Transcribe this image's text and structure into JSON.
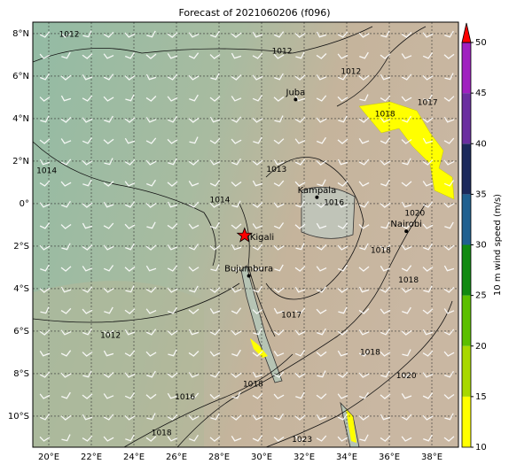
{
  "title": "Forecast of 2021060206 (f096)",
  "map": {
    "lonlim": [
      19.25,
      39.25
    ],
    "latlim": [
      -11.46,
      8.54
    ],
    "xticks": [
      {
        "value": 20,
        "label": "20°E"
      },
      {
        "value": 22,
        "label": "22°E"
      },
      {
        "value": 24,
        "label": "24°E"
      },
      {
        "value": 26,
        "label": "26°E"
      },
      {
        "value": 28,
        "label": "28°E"
      },
      {
        "value": 30,
        "label": "30°E"
      },
      {
        "value": 32,
        "label": "32°E"
      },
      {
        "value": 34,
        "label": "34°E"
      },
      {
        "value": 36,
        "label": "36°E"
      },
      {
        "value": 38,
        "label": "38°E"
      }
    ],
    "yticks": [
      {
        "value": 8,
        "label": "8°N"
      },
      {
        "value": 6,
        "label": "6°N"
      },
      {
        "value": 4,
        "label": "4°N"
      },
      {
        "value": 2,
        "label": "2°N"
      },
      {
        "value": 0,
        "label": "0°"
      },
      {
        "value": -2,
        "label": "2°S"
      },
      {
        "value": -4,
        "label": "4°S"
      },
      {
        "value": -6,
        "label": "6°S"
      },
      {
        "value": -8,
        "label": "8°S"
      },
      {
        "value": -10,
        "label": "10°S"
      }
    ],
    "grid": true,
    "cities": [
      {
        "name": "Juba",
        "lon": 31.6,
        "lat": 4.9
      },
      {
        "name": "Kampala",
        "lon": 32.6,
        "lat": 0.3
      },
      {
        "name": "Kigali",
        "lon": 29.2,
        "lat": -1.5
      },
      {
        "name": "Bujumbura",
        "lon": 29.4,
        "lat": -3.4
      },
      {
        "name": "Nairobi",
        "lon": 36.8,
        "lat": -1.3
      }
    ],
    "contour_labels": [
      {
        "label": "1012",
        "lon": 20.96,
        "lat": 7.96
      },
      {
        "label": "1012",
        "lon": 30.96,
        "lat": 7.17
      },
      {
        "label": "1012",
        "lon": 34.2,
        "lat": 6.2
      },
      {
        "label": "1014",
        "lon": 19.9,
        "lat": 1.54
      },
      {
        "label": "1014",
        "lon": 28.04,
        "lat": 0.17
      },
      {
        "label": "1013",
        "lon": 30.7,
        "lat": 1.6
      },
      {
        "label": "1016",
        "lon": 33.4,
        "lat": 0.04
      },
      {
        "label": "1020",
        "lon": 37.2,
        "lat": -0.46
      },
      {
        "label": "1018",
        "lon": 35.6,
        "lat": -2.2
      },
      {
        "label": "1018",
        "lon": 36.9,
        "lat": -3.6
      },
      {
        "label": "1012",
        "lon": 22.9,
        "lat": -6.2
      },
      {
        "label": "1017",
        "lon": 31.4,
        "lat": -5.25
      },
      {
        "label": "1018",
        "lon": 35.1,
        "lat": -7.0
      },
      {
        "label": "1020",
        "lon": 36.8,
        "lat": -8.1
      },
      {
        "label": "1018",
        "lon": 29.6,
        "lat": -8.5
      },
      {
        "label": "1016",
        "lon": 26.4,
        "lat": -9.1
      },
      {
        "label": "1018",
        "lon": 25.3,
        "lat": -10.8
      },
      {
        "label": "1023",
        "lon": 31.9,
        "lat": -11.1
      },
      {
        "label": "1017",
        "lon": 37.8,
        "lat": 4.75
      },
      {
        "label": "1018",
        "lon": 35.8,
        "lat": 4.2
      }
    ]
  },
  "colorbar": {
    "label": "10 m wind speed (m/s)",
    "lim": [
      10,
      50
    ],
    "ticks": [
      10,
      15,
      20,
      25,
      30,
      35,
      40,
      45,
      50
    ],
    "bounds": [
      10,
      15,
      20,
      25,
      30,
      35,
      40,
      45,
      50
    ],
    "colors": [
      "#ffff00",
      "#a8d800",
      "#5cbf00",
      "#118a11",
      "#1f6090",
      "#1c2a5c",
      "#6a2fa0",
      "#a020c0"
    ],
    "extend_color": "#ff0000"
  }
}
